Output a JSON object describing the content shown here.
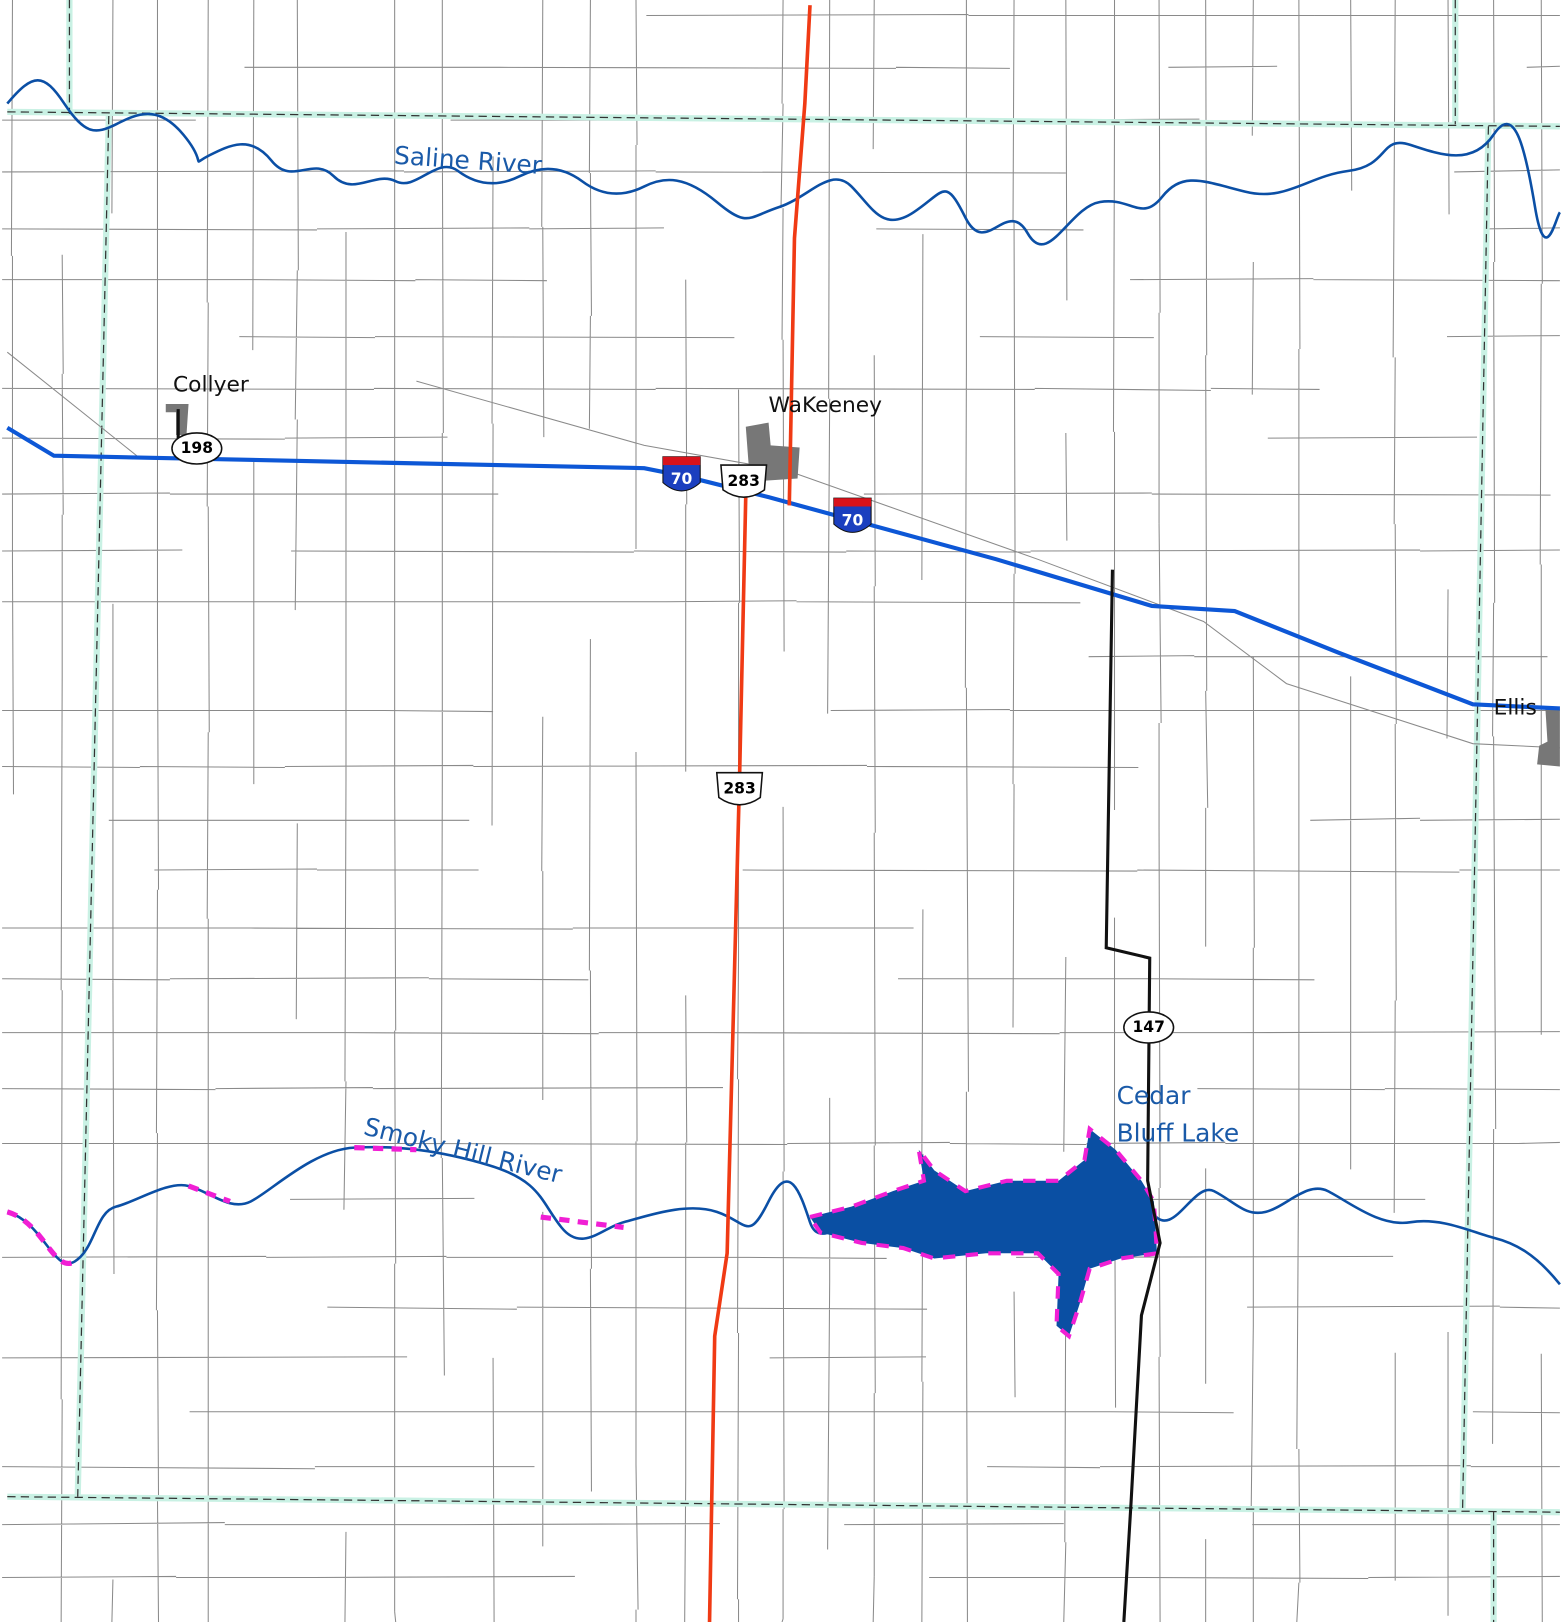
{
  "places": {
    "collyer": "Collyer",
    "wakeeney": "WaKeeney",
    "ellis": "Ellis"
  },
  "water": {
    "saline": "Saline River",
    "smoky": "Smoky Hill River",
    "lake": [
      "Cedar",
      "Bluff Lake"
    ]
  },
  "shields": [
    "198",
    "70",
    "283",
    "70",
    "283",
    "147"
  ]
}
